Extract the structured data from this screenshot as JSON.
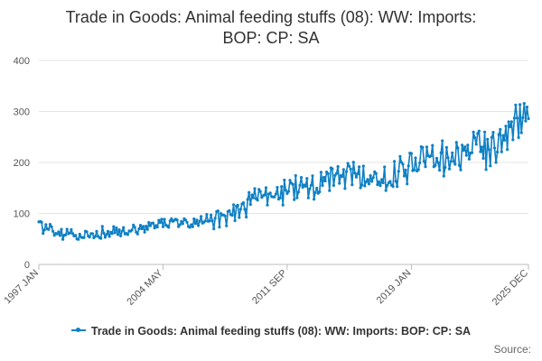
{
  "chart_data": {
    "type": "line",
    "title_lines": [
      "Trade in Goods: Animal feeding stuffs (08): WW: Imports:",
      "BOP: CP: SA"
    ],
    "xlabel": "",
    "ylabel": "",
    "ylim": [
      0,
      400
    ],
    "yticks": [
      "0",
      "100",
      "200",
      "300",
      "400"
    ],
    "x_ticks": [
      {
        "label": "1997 JAN",
        "index": 0
      },
      {
        "label": "2004 MAY",
        "index": 88
      },
      {
        "label": "2011 SEP",
        "index": 176
      },
      {
        "label": "2019 JAN",
        "index": 264
      },
      {
        "label": "2025 DEC",
        "index": 347
      }
    ],
    "start": "1997 JAN",
    "end": "2025 DEC",
    "gridlines": true,
    "legend_position": "bottom",
    "series": [
      {
        "name": "Trade in Goods: Animal feeding stuffs (08): WW: Imports: BOP: CP: SA",
        "color": "#0f80c4",
        "anchors": [
          [
            0,
            78
          ],
          [
            12,
            62
          ],
          [
            24,
            55
          ],
          [
            36,
            60
          ],
          [
            48,
            63
          ],
          [
            60,
            65
          ],
          [
            72,
            67
          ],
          [
            84,
            78
          ],
          [
            90,
            82
          ],
          [
            96,
            80
          ],
          [
            108,
            82
          ],
          [
            120,
            85
          ],
          [
            132,
            88
          ],
          [
            144,
            110
          ],
          [
            156,
            132
          ],
          [
            168,
            140
          ],
          [
            180,
            145
          ],
          [
            192,
            152
          ],
          [
            204,
            165
          ],
          [
            216,
            175
          ],
          [
            228,
            170
          ],
          [
            240,
            168
          ],
          [
            252,
            175
          ],
          [
            264,
            190
          ],
          [
            270,
            215
          ],
          [
            276,
            205
          ],
          [
            288,
            210
          ],
          [
            300,
            218
          ],
          [
            312,
            225
          ],
          [
            324,
            235
          ],
          [
            330,
            262
          ],
          [
            336,
            268
          ],
          [
            342,
            285
          ],
          [
            347,
            305
          ]
        ],
        "noise": [
          [
            0,
            10
          ],
          [
            84,
            10
          ],
          [
            140,
            18
          ],
          [
            180,
            22
          ],
          [
            230,
            22
          ],
          [
            260,
            25
          ],
          [
            300,
            32
          ],
          [
            347,
            36
          ]
        ]
      }
    ]
  },
  "legend": {
    "label": "Trade in Goods: Animal feeding stuffs (08): WW: Imports: BOP: CP: SA"
  },
  "source": {
    "label": "Source:"
  }
}
